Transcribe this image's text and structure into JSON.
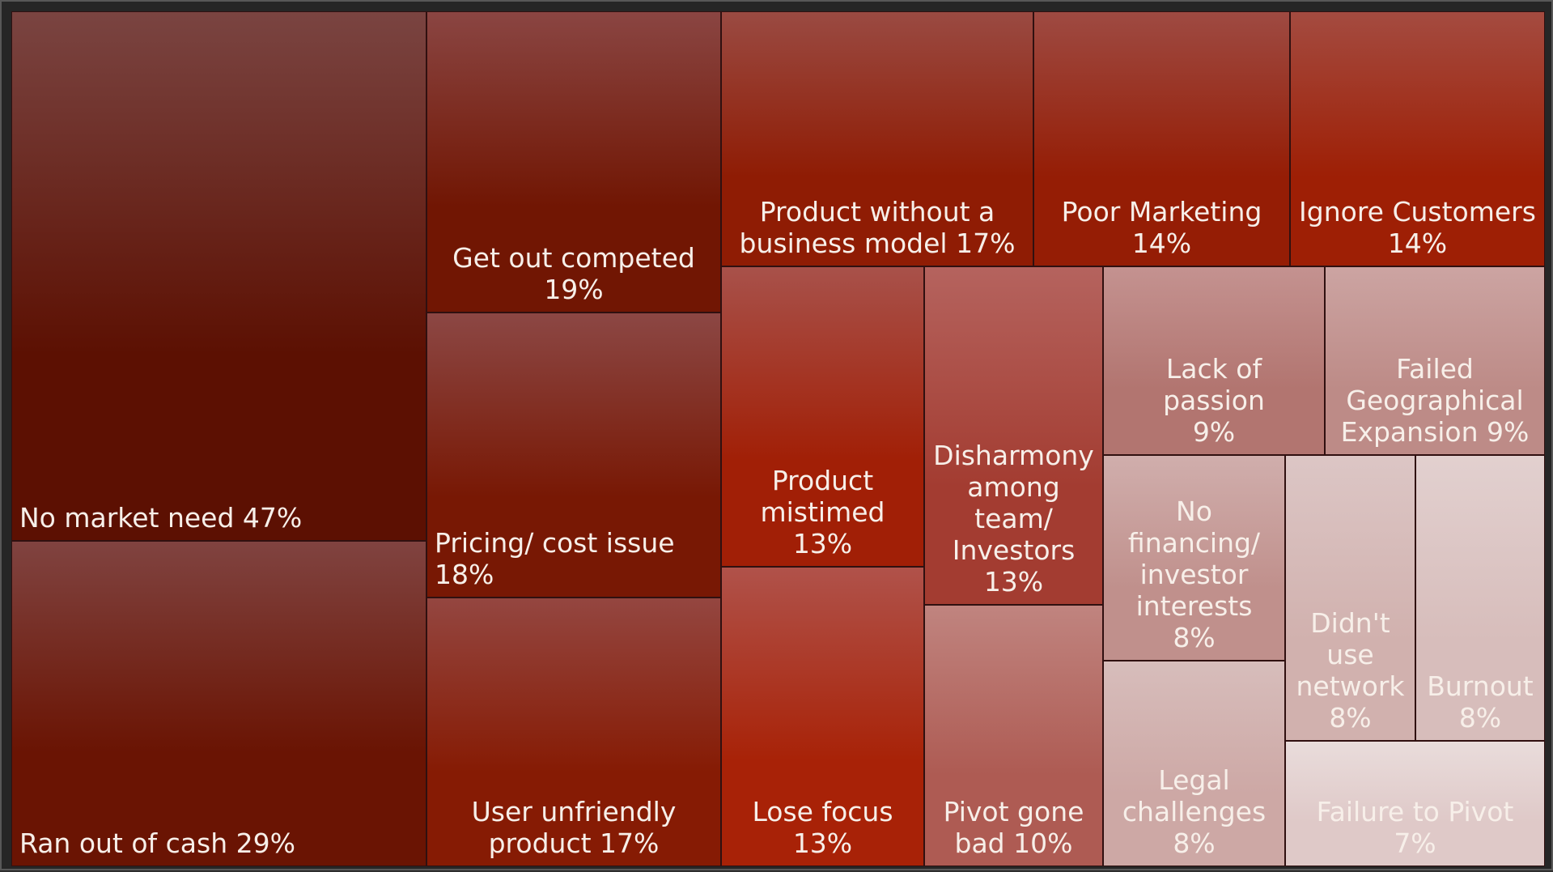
{
  "chart_data": {
    "type": "treemap",
    "value_unit": "%",
    "items": [
      {
        "label": "No market need 47%",
        "value": 47,
        "color_top": "#7a4441",
        "color_bottom": "#5c1002",
        "align": "left"
      },
      {
        "label": "Ran out of cash 29%",
        "value": 29,
        "color_top": "#804340",
        "color_bottom": "#6a1403",
        "align": "left"
      },
      {
        "label": "Get out competed\n19%",
        "value": 19,
        "color_top": "#8a4542",
        "color_bottom": "#711603",
        "align": "center"
      },
      {
        "label": "Pricing/ cost issue 18%",
        "value": 18,
        "color_top": "#8c4744",
        "color_bottom": "#781804",
        "align": "left"
      },
      {
        "label": "User unfriendly\nproduct 17%",
        "value": 17,
        "color_top": "#944640",
        "color_bottom": "#861b04",
        "align": "center"
      },
      {
        "label": "Product without a\nbusiness model 17%",
        "value": 17,
        "color_top": "#9a4a42",
        "color_bottom": "#8f1c04",
        "align": "center"
      },
      {
        "label": "Poor Marketing\n14%",
        "value": 14,
        "color_top": "#9e4a42",
        "color_bottom": "#951d05",
        "align": "center"
      },
      {
        "label": "Ignore Customers\n14%",
        "value": 14,
        "color_top": "#a44b40",
        "color_bottom": "#9e1f05",
        "align": "center"
      },
      {
        "label": "Product\nmistimed 13%",
        "value": 13,
        "color_top": "#a8514a",
        "color_bottom": "#a11f06",
        "align": "center"
      },
      {
        "label": "Lose focus 13%",
        "value": 13,
        "color_top": "#b0524a",
        "color_bottom": "#a82207",
        "align": "center"
      },
      {
        "label": "Disharmony\namong\nteam/\nInvestors 13%",
        "value": 13,
        "color_top": "#b5635e",
        "color_bottom": "#a33c31",
        "align": "center"
      },
      {
        "label": "Pivot gone\nbad 10%",
        "value": 10,
        "color_top": "#c0847f",
        "color_bottom": "#ae5b53",
        "align": "center"
      },
      {
        "label": "Lack of passion\n9%",
        "value": 9,
        "color_top": "#c49290",
        "color_bottom": "#b27570",
        "align": "center"
      },
      {
        "label": "Failed\nGeographical\nExpansion 9%",
        "value": 9,
        "color_top": "#cca4a2",
        "color_bottom": "#bd8b87",
        "align": "center"
      },
      {
        "label": "No\nfinancing/\ninvestor\ninterests 8%",
        "value": 8,
        "color_top": "#d0aeac",
        "color_bottom": "#c0908c",
        "align": "center"
      },
      {
        "label": "Legal\nchallenges\n8%",
        "value": 8,
        "color_top": "#d7bdbb",
        "color_bottom": "#cda8a5",
        "align": "center"
      },
      {
        "label": "Didn't\nuse\nnetwork\n8%",
        "value": 8,
        "color_top": "#dcc6c5",
        "color_bottom": "#d1b1ae",
        "align": "center"
      },
      {
        "label": "Burnout\n8%",
        "value": 8,
        "color_top": "#e2d0cf",
        "color_bottom": "#d7bdbb",
        "align": "center"
      },
      {
        "label": "Failure to Pivot 7%",
        "value": 7,
        "color_top": "#e9dcdb",
        "color_bottom": "#dfc9c8",
        "align": "center"
      }
    ]
  }
}
